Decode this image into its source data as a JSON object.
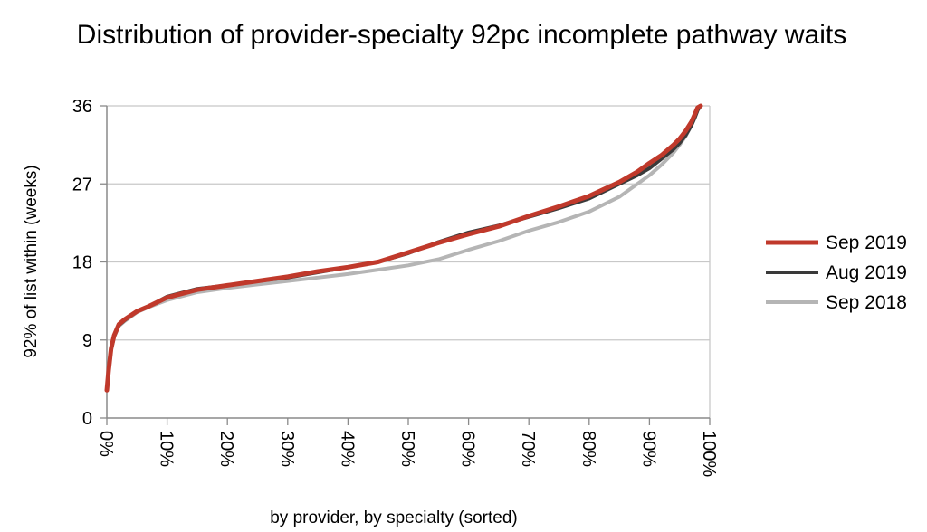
{
  "chart_data": {
    "type": "line",
    "title": "Distribution of provider-specialty 92pc incomplete pathway waits",
    "xlabel": "by provider, by specialty (sorted)",
    "ylabel": "92% of list within (weeks)",
    "xlim": [
      0,
      100
    ],
    "ylim": [
      0,
      36
    ],
    "x_ticks": [
      "0%",
      "10%",
      "20%",
      "30%",
      "40%",
      "50%",
      "60%",
      "70%",
      "80%",
      "90%",
      "100%"
    ],
    "y_ticks": [
      "0",
      "9",
      "18",
      "27",
      "36"
    ],
    "grid": "horizontal",
    "legend_position": "right",
    "series": [
      {
        "name": "Sep 2019",
        "color": "#c0392b",
        "x": [
          0,
          0.3,
          0.7,
          1.2,
          2,
          3,
          5,
          7,
          10,
          15,
          20,
          25,
          30,
          35,
          40,
          45,
          50,
          55,
          60,
          65,
          70,
          75,
          80,
          85,
          88,
          90,
          92,
          94,
          95,
          96,
          97,
          97.5,
          98,
          98.5
        ],
        "values": [
          3.2,
          5.5,
          8.0,
          9.5,
          10.8,
          11.4,
          12.3,
          12.9,
          13.9,
          14.8,
          15.3,
          15.8,
          16.3,
          16.9,
          17.4,
          18.0,
          19.1,
          20.2,
          21.2,
          22.1,
          23.3,
          24.4,
          25.6,
          27.2,
          28.4,
          29.4,
          30.3,
          31.5,
          32.2,
          33.1,
          34.2,
          35.0,
          35.8,
          36.5
        ]
      },
      {
        "name": "Aug 2019",
        "color": "#3a3a3a",
        "x": [
          0,
          0.3,
          0.7,
          1.2,
          2,
          3,
          5,
          7,
          10,
          15,
          20,
          25,
          30,
          35,
          40,
          45,
          50,
          55,
          60,
          65,
          70,
          75,
          80,
          85,
          88,
          90,
          92,
          94,
          95,
          96,
          97,
          97.5,
          98,
          98.5
        ],
        "values": [
          3.2,
          5.4,
          7.9,
          9.4,
          10.7,
          11.3,
          12.3,
          12.9,
          14.0,
          14.9,
          15.3,
          15.8,
          16.2,
          16.8,
          17.4,
          18.0,
          19.0,
          20.3,
          21.4,
          22.2,
          23.2,
          24.2,
          25.3,
          27.0,
          28.0,
          28.8,
          29.9,
          31.0,
          31.7,
          32.6,
          33.8,
          34.6,
          35.5,
          36.5
        ]
      },
      {
        "name": "Sep 2018",
        "color": "#b5b5b5",
        "x": [
          0,
          0.3,
          0.7,
          1.2,
          2,
          3,
          5,
          7,
          10,
          15,
          20,
          25,
          30,
          35,
          40,
          45,
          50,
          55,
          60,
          65,
          70,
          75,
          80,
          85,
          88,
          90,
          92,
          94,
          95,
          96,
          97,
          97.5,
          98,
          98.5
        ],
        "values": [
          3.2,
          5.3,
          7.8,
          9.3,
          10.6,
          11.2,
          12.2,
          12.8,
          13.6,
          14.5,
          15.0,
          15.4,
          15.8,
          16.2,
          16.6,
          17.1,
          17.6,
          18.3,
          19.4,
          20.4,
          21.6,
          22.6,
          23.8,
          25.5,
          27.0,
          28.0,
          29.2,
          30.6,
          31.5,
          32.5,
          33.8,
          34.7,
          35.6,
          36.5
        ]
      }
    ]
  }
}
